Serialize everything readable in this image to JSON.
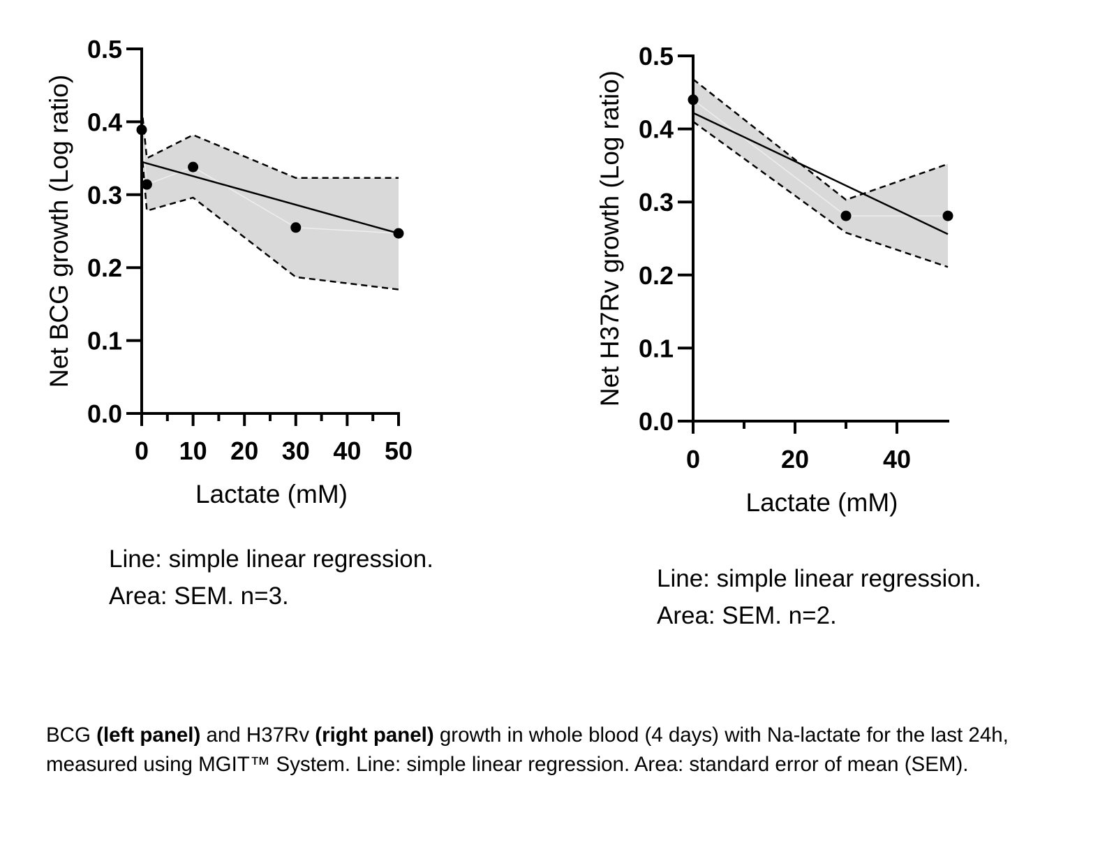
{
  "chart_data": [
    {
      "type": "line",
      "panel": "left",
      "title": "",
      "xlabel": "Lactate (mM)",
      "ylabel": "Net BCG growth (Log ratio)",
      "xlim": [
        0,
        50
      ],
      "ylim": [
        0,
        0.5
      ],
      "xticks": [
        0,
        10,
        20,
        30,
        40,
        50
      ],
      "xminor_ticks": [
        5,
        15,
        25,
        35,
        45
      ],
      "yticks": [
        0.0,
        0.1,
        0.2,
        0.3,
        0.4,
        0.5
      ],
      "ytick_labels": [
        "0.0",
        "0.1",
        "0.2",
        "0.3",
        "0.4",
        "0.5"
      ],
      "grid": false,
      "series": [
        {
          "name": "mean",
          "kind": "points",
          "x": [
            0,
            1,
            10,
            30,
            50
          ],
          "y": [
            0.389,
            0.314,
            0.338,
            0.255,
            0.247
          ]
        },
        {
          "name": "SEM upper",
          "kind": "dashed",
          "x": [
            0,
            1,
            10,
            30,
            50
          ],
          "y": [
            0.42,
            0.35,
            0.382,
            0.323,
            0.323
          ]
        },
        {
          "name": "SEM lower",
          "kind": "dashed",
          "x": [
            0,
            1,
            10,
            30,
            50
          ],
          "y": [
            0.36,
            0.278,
            0.296,
            0.187,
            0.17
          ]
        },
        {
          "name": "linear regression",
          "kind": "line",
          "x": [
            0,
            50
          ],
          "y": [
            0.345,
            0.247
          ]
        }
      ],
      "note_lines": [
        "Line: simple linear regression.",
        "Area: SEM. n=3."
      ]
    },
    {
      "type": "line",
      "panel": "right",
      "title": "",
      "xlabel": "Lactate (mM)",
      "ylabel": "Net H37Rv growth (Log ratio)",
      "xlim": [
        0,
        50
      ],
      "ylim": [
        0,
        0.5
      ],
      "xticks": [
        0,
        20,
        40
      ],
      "xminor_ticks": [
        10,
        30
      ],
      "yticks": [
        0.0,
        0.1,
        0.2,
        0.3,
        0.4,
        0.5
      ],
      "ytick_labels": [
        "0.0",
        "0.1",
        "0.2",
        "0.3",
        "0.4",
        "0.5"
      ],
      "grid": false,
      "series": [
        {
          "name": "mean",
          "kind": "points",
          "x": [
            0,
            30,
            50
          ],
          "y": [
            0.44,
            0.281,
            0.281
          ]
        },
        {
          "name": "SEM upper",
          "kind": "dashed",
          "x": [
            0,
            30,
            50
          ],
          "y": [
            0.468,
            0.303,
            0.352
          ]
        },
        {
          "name": "SEM lower",
          "kind": "dashed",
          "x": [
            0,
            30,
            50
          ],
          "y": [
            0.41,
            0.258,
            0.211
          ]
        },
        {
          "name": "linear regression",
          "kind": "line",
          "x": [
            0,
            50
          ],
          "y": [
            0.422,
            0.256
          ]
        }
      ],
      "note_lines": [
        "Line: simple linear regression.",
        "Area: SEM. n=2."
      ]
    }
  ],
  "colors": {
    "sem_fill": "#d9d9d9",
    "line": "#000000",
    "points": "#000000"
  },
  "caption": {
    "part1": "BCG ",
    "bold1": "(left panel)",
    "part2": " and H37Rv ",
    "bold2": "(right panel)",
    "part3": " growth in whole blood (4 days) with Na-lactate for the last 24h, measured using MGIT™ System. Line: simple linear regression. Area: standard error of mean (SEM)."
  }
}
